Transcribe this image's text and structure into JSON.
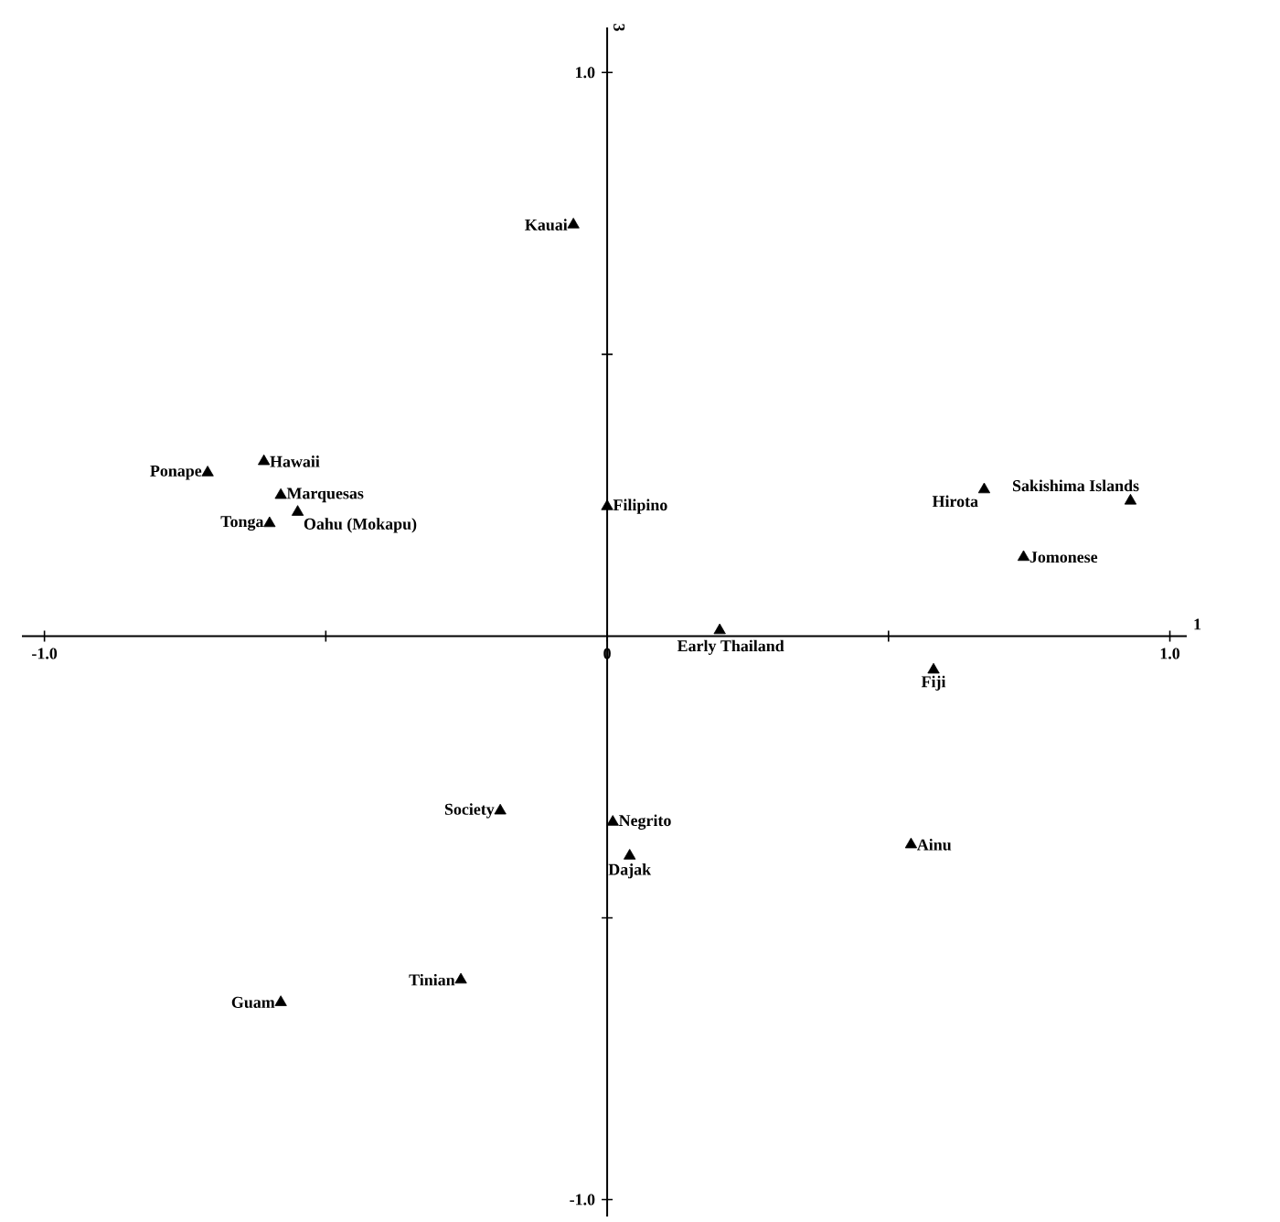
{
  "chart_data": {
    "type": "scatter",
    "xlabel": "1",
    "ylabel": "3",
    "xlim": [
      -1.04,
      1.03
    ],
    "ylim": [
      -1.03,
      1.08
    ],
    "xticks": [
      {
        "value": -1.0,
        "label": "-1.0"
      },
      {
        "value": -0.5,
        "label": null
      },
      0,
      {
        "value": 0.5,
        "label": null
      },
      {
        "value": 1.0,
        "label": "1.0"
      }
    ],
    "yticks": [
      {
        "value": -1.0,
        "label": "-1.0"
      },
      {
        "value": -0.5,
        "label": null
      },
      {
        "value": 0.5,
        "label": null
      },
      {
        "value": 1.0,
        "label": "1.0"
      }
    ],
    "marker": "triangle",
    "grid": false,
    "series": [
      {
        "color": "#000000",
        "x": [
          -0.06,
          -0.71,
          -0.61,
          -0.58,
          -0.6,
          -0.55,
          0.0,
          0.67,
          0.93,
          0.74,
          0.2,
          0.58,
          0.01,
          0.04,
          0.54,
          -0.19,
          -0.26,
          -0.58
        ],
        "values": [
          0.73,
          0.29,
          0.31,
          0.25,
          0.2,
          0.22,
          0.23,
          0.26,
          0.24,
          0.14,
          0.01,
          -0.06,
          -0.33,
          -0.39,
          -0.37,
          -0.31,
          -0.61,
          -0.65
        ]
      }
    ],
    "annotations": [
      {
        "text": "Kauai",
        "x": -0.06,
        "y": 0.73
      },
      {
        "text": "Ponape",
        "x": -0.71,
        "y": 0.29
      },
      {
        "text": "Hawaii",
        "x": -0.61,
        "y": 0.31
      },
      {
        "text": "Marquesas",
        "x": -0.58,
        "y": 0.25
      },
      {
        "text": "Tonga",
        "x": -0.6,
        "y": 0.2
      },
      {
        "text": "Oahu (Mokapu)",
        "x": -0.55,
        "y": 0.22
      },
      {
        "text": "Filipino",
        "x": 0.0,
        "y": 0.23
      },
      {
        "text": "Hirota",
        "x": 0.67,
        "y": 0.26
      },
      {
        "text": "Sakishima Islands",
        "x": 0.93,
        "y": 0.24
      },
      {
        "text": "Jomonese",
        "x": 0.74,
        "y": 0.14
      },
      {
        "text": "Early Thailand",
        "x": 0.2,
        "y": 0.01
      },
      {
        "text": "Fiji",
        "x": 0.58,
        "y": -0.06
      },
      {
        "text": "Negrito",
        "x": 0.01,
        "y": -0.33
      },
      {
        "text": "Dajak",
        "x": 0.04,
        "y": -0.39
      },
      {
        "text": "Ainu",
        "x": 0.54,
        "y": -0.37
      },
      {
        "text": "Society",
        "x": -0.19,
        "y": -0.31
      },
      {
        "text": "Tinian",
        "x": -0.26,
        "y": -0.61
      },
      {
        "text": "Guam",
        "x": -0.58,
        "y": -0.65
      }
    ]
  }
}
